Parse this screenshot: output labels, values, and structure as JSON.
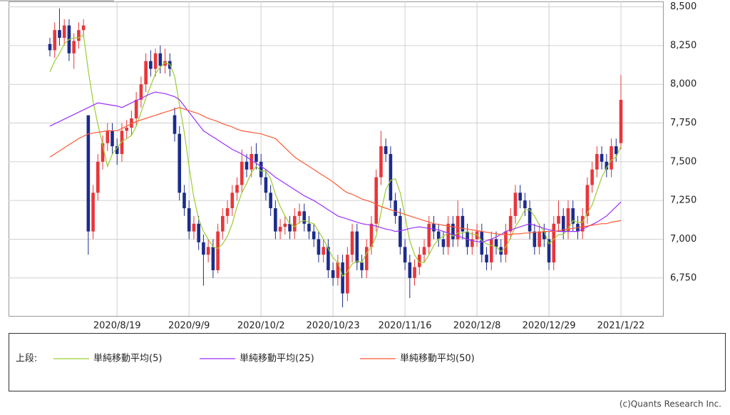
{
  "chart_data": {
    "type": "candlestick",
    "categories": [
      null,
      null,
      null,
      null,
      null,
      null,
      null,
      null,
      null,
      null,
      null,
      null,
      null,
      null,
      "2020/8/19",
      null,
      null,
      null,
      null,
      null,
      null,
      null,
      null,
      null,
      null,
      null,
      null,
      null,
      null,
      "2020/9/9",
      null,
      null,
      null,
      null,
      null,
      null,
      null,
      null,
      null,
      null,
      null,
      null,
      null,
      null,
      "2020/10/2",
      null,
      null,
      null,
      null,
      null,
      null,
      null,
      null,
      null,
      null,
      null,
      null,
      null,
      null,
      "2020/10/23",
      null,
      null,
      null,
      null,
      null,
      null,
      null,
      null,
      null,
      null,
      null,
      null,
      null,
      null,
      "2020/11/16",
      null,
      null,
      null,
      null,
      null,
      null,
      null,
      null,
      null,
      null,
      null,
      null,
      null,
      null,
      "2020/12/8",
      null,
      null,
      null,
      null,
      null,
      null,
      null,
      null,
      null,
      null,
      null,
      null,
      null,
      null,
      "2020/12/29",
      null,
      null,
      null,
      null,
      null,
      null,
      null,
      null,
      null,
      null,
      null,
      null,
      null,
      null,
      "2021/1/22"
    ],
    "open": [
      8260,
      8220,
      8350,
      8300,
      8380,
      8200,
      8280,
      8350,
      7800,
      7050,
      7300,
      7500,
      7620,
      7700,
      7600,
      7550,
      7700,
      7720,
      7780,
      7900,
      8000,
      8150,
      8100,
      8200,
      8120,
      8150,
      7800,
      7680,
      7300,
      7200,
      7050,
      7100,
      6980,
      6900,
      6950,
      6800,
      7050,
      7150,
      7200,
      7300,
      7350,
      7500,
      7450,
      7550,
      7500,
      7400,
      7300,
      7200,
      7050,
      7080,
      7100,
      7050,
      7150,
      7180,
      7100,
      7050,
      7000,
      6900,
      6950,
      6800,
      6750,
      6850,
      6650,
      6900,
      7050,
      6850,
      6800,
      6950,
      7100,
      7400,
      7600,
      7550,
      7250,
      7150,
      6950,
      6850,
      6750,
      6820,
      6900,
      6950,
      7100,
      7050,
      7000,
      6950,
      7100,
      7000,
      7150,
      7050,
      6950,
      7000,
      7050,
      6900,
      6850,
      7000,
      6950,
      6900,
      7050,
      7150,
      7300,
      7250,
      7200,
      7050,
      6950,
      7050,
      7000,
      6850,
      7100,
      7150,
      7050,
      7200,
      7100,
      7050,
      7150,
      7350,
      7450,
      7550,
      7500,
      7450,
      7600,
      7620
    ],
    "high": [
      8300,
      8400,
      8490,
      8420,
      8420,
      8330,
      8400,
      8420,
      7800,
      7350,
      7550,
      7670,
      7750,
      7750,
      7650,
      7750,
      7770,
      7830,
      7950,
      8050,
      8200,
      8220,
      8230,
      8250,
      8230,
      8200,
      7850,
      7730,
      7350,
      7250,
      7150,
      7150,
      7030,
      7000,
      7000,
      7100,
      7200,
      7250,
      7350,
      7400,
      7580,
      7550,
      7600,
      7620,
      7550,
      7450,
      7350,
      7250,
      7130,
      7150,
      7150,
      7200,
      7230,
      7230,
      7150,
      7100,
      7050,
      7000,
      7000,
      6850,
      6900,
      6900,
      6950,
      7100,
      7100,
      6900,
      7000,
      7150,
      7450,
      7700,
      7650,
      7600,
      7300,
      7200,
      7000,
      6900,
      6870,
      6950,
      7000,
      7150,
      7150,
      7100,
      7050,
      7150,
      7150,
      7250,
      7200,
      7100,
      7050,
      7100,
      7100,
      6950,
      7050,
      7050,
      7000,
      7100,
      7200,
      7350,
      7350,
      7300,
      7250,
      7100,
      7100,
      7100,
      7050,
      7150,
      7250,
      7200,
      7250,
      7250,
      7150,
      7200,
      7400,
      7500,
      7600,
      7600,
      7550,
      7650,
      7650,
      8060
    ],
    "low": [
      8180,
      8170,
      8250,
      8250,
      8150,
      8100,
      8230,
      8300,
      6900,
      7000,
      7250,
      7450,
      7570,
      7550,
      7480,
      7500,
      7650,
      7670,
      7730,
      7850,
      7950,
      8050,
      8050,
      8070,
      8070,
      8050,
      7630,
      7250,
      7150,
      7000,
      7000,
      6930,
      6700,
      6850,
      6750,
      6780,
      7000,
      7100,
      7150,
      7250,
      7300,
      7400,
      7400,
      7450,
      7350,
      7250,
      7150,
      7000,
      7000,
      7030,
      7000,
      7000,
      7100,
      7050,
      7000,
      6950,
      6850,
      6850,
      6750,
      6700,
      6700,
      6560,
      6600,
      6850,
      6800,
      6750,
      6750,
      6900,
      7050,
      7350,
      7500,
      7200,
      7100,
      6900,
      6800,
      6620,
      6700,
      6770,
      6850,
      6900,
      7000,
      6950,
      6900,
      6900,
      6950,
      6950,
      7000,
      6900,
      6900,
      6950,
      6850,
      6800,
      6800,
      6900,
      6850,
      6850,
      7000,
      7100,
      7200,
      7150,
      7000,
      6900,
      6900,
      6950,
      6800,
      6800,
      7050,
      7000,
      7000,
      7050,
      7000,
      7000,
      7100,
      7300,
      7400,
      7450,
      7400,
      7400,
      7500,
      7580
    ],
    "close": [
      8220,
      8350,
      8300,
      8380,
      8200,
      8280,
      8350,
      8380,
      7050,
      7300,
      7500,
      7620,
      7700,
      7600,
      7550,
      7700,
      7720,
      7780,
      7900,
      8000,
      8150,
      8100,
      8200,
      8120,
      8150,
      8100,
      7680,
      7300,
      7200,
      7050,
      7100,
      6980,
      6900,
      6950,
      6800,
      7050,
      7150,
      7200,
      7300,
      7350,
      7500,
      7450,
      7550,
      7500,
      7400,
      7300,
      7200,
      7050,
      7080,
      7100,
      7050,
      7150,
      7180,
      7100,
      7050,
      7000,
      6900,
      6950,
      6800,
      6750,
      6850,
      6650,
      6900,
      7050,
      6850,
      6800,
      6950,
      7100,
      7400,
      7600,
      7550,
      7250,
      7150,
      6950,
      6850,
      6750,
      6820,
      6900,
      6950,
      7100,
      7050,
      7000,
      6950,
      7100,
      7000,
      7150,
      7050,
      6950,
      7000,
      7050,
      6900,
      6850,
      7000,
      6950,
      6900,
      7050,
      7150,
      7300,
      7250,
      7200,
      7050,
      6950,
      7050,
      7000,
      6850,
      7100,
      7150,
      7050,
      7200,
      7100,
      7050,
      7150,
      7350,
      7450,
      7550,
      7500,
      7450,
      7600,
      7550,
      7900
    ],
    "up_color": "#e8363a",
    "down_color": "#1c2c8c",
    "series": [
      {
        "name": "単純移動平均(5)",
        "color": "#9acd32",
        "values": [
          8080,
          8150,
          8200,
          8260,
          8290,
          8300,
          8300,
          8320,
          8090,
          7890,
          7740,
          7610,
          7470,
          7550,
          7590,
          7630,
          7650,
          7670,
          7730,
          7820,
          7910,
          7990,
          8070,
          8110,
          8140,
          8130,
          8050,
          7870,
          7690,
          7470,
          7270,
          7130,
          7050,
          7000,
          6950,
          6940,
          6970,
          7020,
          7100,
          7210,
          7300,
          7360,
          7430,
          7470,
          7440,
          7440,
          7390,
          7290,
          7210,
          7150,
          7100,
          7080,
          7110,
          7120,
          7110,
          7100,
          7050,
          7000,
          6940,
          6880,
          6850,
          6760,
          6790,
          6840,
          6860,
          6850,
          6910,
          6950,
          7020,
          7170,
          7320,
          7380,
          7390,
          7300,
          7150,
          6990,
          6900,
          6850,
          6850,
          6900,
          6960,
          7000,
          7020,
          7040,
          7020,
          7040,
          7040,
          7050,
          7030,
          7030,
          6990,
          6970,
          6960,
          6950,
          6920,
          6950,
          7010,
          7080,
          7130,
          7190,
          7190,
          7150,
          7090,
          7050,
          6970,
          7000,
          7030,
          7030,
          7070,
          7120,
          7110,
          7110,
          7170,
          7220,
          7310,
          7400,
          7460,
          7510,
          7530,
          7600
        ]
      },
      {
        "name": "単純移動平均(25)",
        "color": "#9b30ff",
        "values": [
          7730,
          7745,
          7760,
          7775,
          7790,
          7805,
          7820,
          7835,
          7850,
          7865,
          7880,
          7875,
          7870,
          7865,
          7860,
          7850,
          7865,
          7880,
          7895,
          7910,
          7925,
          7940,
          7950,
          7945,
          7940,
          7930,
          7920,
          7900,
          7860,
          7820,
          7780,
          7740,
          7700,
          7680,
          7660,
          7640,
          7620,
          7600,
          7580,
          7565,
          7550,
          7530,
          7510,
          7490,
          7470,
          7450,
          7425,
          7400,
          7380,
          7360,
          7340,
          7320,
          7300,
          7280,
          7265,
          7250,
          7230,
          7210,
          7190,
          7170,
          7150,
          7140,
          7130,
          7120,
          7110,
          7100,
          7095,
          7090,
          7085,
          7075,
          7065,
          7060,
          7050,
          7055,
          7060,
          7070,
          7075,
          7080,
          7075,
          7070,
          7065,
          7060,
          7050,
          7040,
          7030,
          7020,
          7010,
          7000,
          6990,
          6985,
          6980,
          6990,
          7000,
          7015,
          7030,
          7050,
          7060,
          7070,
          7080,
          7090,
          7100,
          7090,
          7080,
          7070,
          7060,
          7055,
          7050,
          7050,
          7050,
          7050,
          7050,
          7065,
          7080,
          7095,
          7110,
          7130,
          7150,
          7180,
          7210,
          7240
        ]
      },
      {
        "name": "単純移動平均(50)",
        "color": "#ff5a36",
        "values": [
          7530,
          7550,
          7570,
          7590,
          7610,
          7630,
          7650,
          7665,
          7680,
          7685,
          7690,
          7695,
          7700,
          7700,
          7700,
          7715,
          7730,
          7745,
          7760,
          7770,
          7780,
          7790,
          7800,
          7810,
          7820,
          7830,
          7840,
          7850,
          7840,
          7830,
          7820,
          7810,
          7795,
          7780,
          7770,
          7760,
          7745,
          7735,
          7725,
          7710,
          7700,
          7695,
          7690,
          7685,
          7680,
          7670,
          7660,
          7650,
          7620,
          7590,
          7560,
          7530,
          7510,
          7490,
          7470,
          7450,
          7430,
          7410,
          7390,
          7370,
          7345,
          7320,
          7300,
          7290,
          7275,
          7260,
          7250,
          7240,
          7225,
          7210,
          7200,
          7190,
          7180,
          7170,
          7160,
          7150,
          7140,
          7130,
          7120,
          7110,
          7100,
          7095,
          7090,
          7085,
          7080,
          7075,
          7070,
          7065,
          7060,
          7055,
          7050,
          7045,
          7040,
          7035,
          7030,
          7030,
          7030,
          7035,
          7035,
          7040,
          7040,
          7045,
          7045,
          7050,
          7050,
          7050,
          7055,
          7060,
          7065,
          7070,
          7075,
          7080,
          7085,
          7090,
          7095,
          7100,
          7100,
          7110,
          7115,
          7120
        ]
      }
    ],
    "ylim": [
      6505,
      8535
    ],
    "yticks": [
      {
        "value": 6750,
        "label": "6,750"
      },
      {
        "value": 7000,
        "label": "7,000"
      },
      {
        "value": 7250,
        "label": "7,250"
      },
      {
        "value": 7500,
        "label": "7,500"
      },
      {
        "value": 7750,
        "label": "7,750"
      },
      {
        "value": 8000,
        "label": "8,000"
      },
      {
        "value": 8250,
        "label": "8,250"
      },
      {
        "value": 8500,
        "label": "8,500"
      }
    ],
    "grid": true,
    "legend_prefix": "上段:",
    "credit": "(c)Quants Research Inc."
  }
}
